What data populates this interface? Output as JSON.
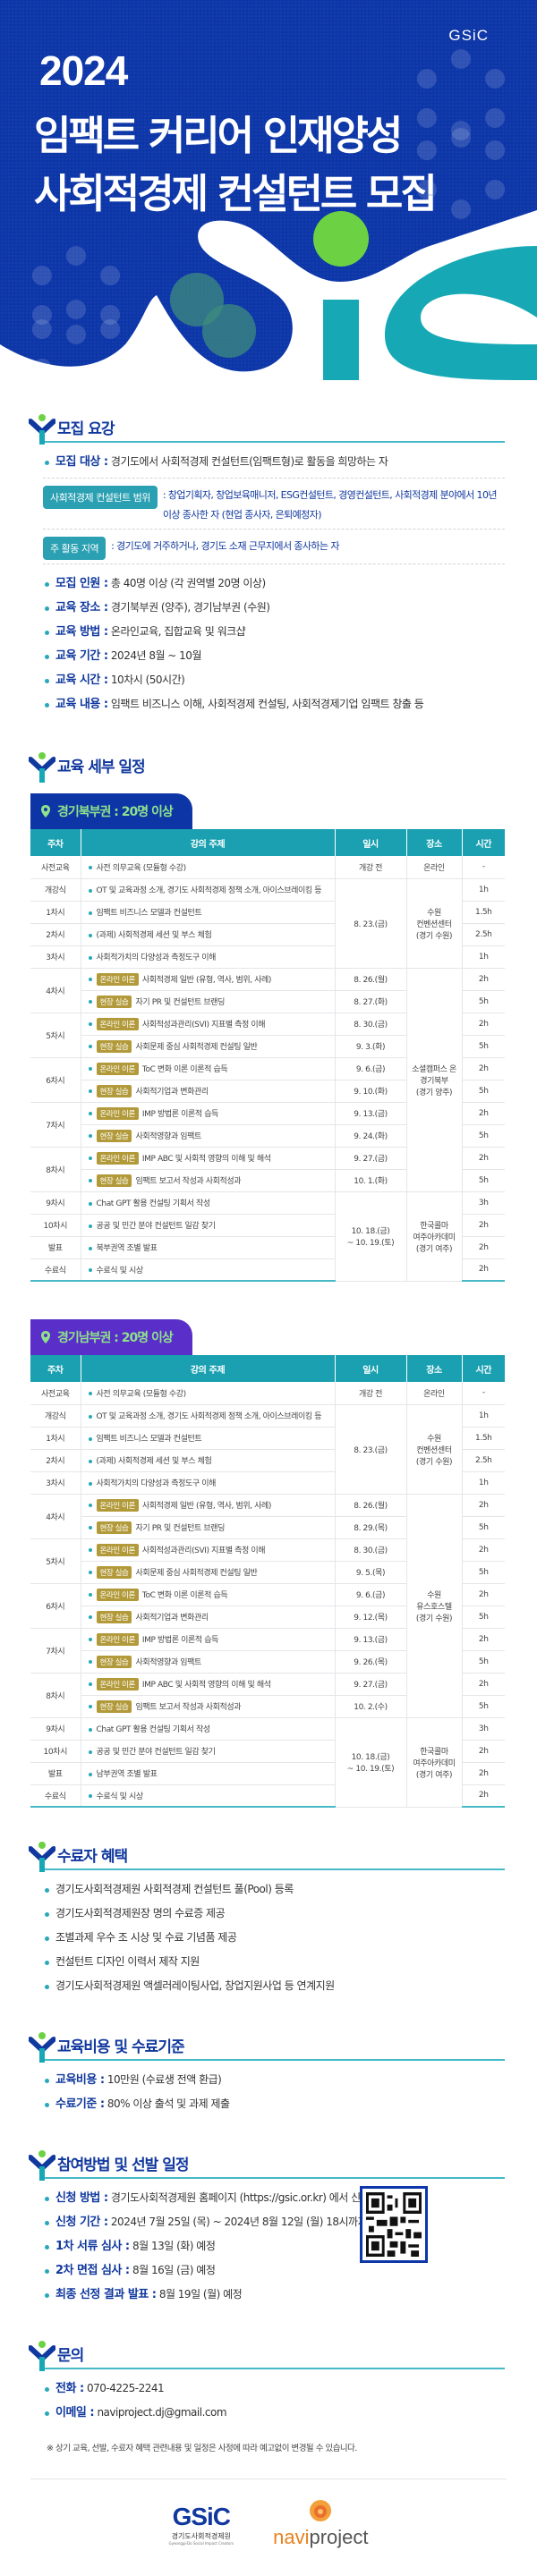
{
  "hero": {
    "logo": "GSiC",
    "year": "2024",
    "title_line1": "임팩트 커리어 인재양성",
    "title_line2": "사회적경제 컨설턴트 모집",
    "colors": {
      "bg": "#0d36a8",
      "green": "#6cd243",
      "teal": "#16a9b5"
    }
  },
  "recruit": {
    "title": "모집 요강",
    "target_label": "모집 대상 :",
    "target_value": "경기도에서 사회적경제 컨설턴트(임팩트형)로 활동을 희망하는 자",
    "scope_chip": "사회적경제 컨설턴트 범위",
    "scope_text": ": 창업기획자, 창업보육매니저, ESG컨설턴트, 경영컨설턴트, 사회적경제 분야에서 10년 이상 종사한 자 (현업 종사자, 은퇴예정자)",
    "region_chip": "주 활동 지역",
    "region_text": ": 경기도에 거주하거나, 경기도 소재 근무지에서 종사하는 자",
    "items": [
      {
        "label": "모집 인원 :",
        "value": "총 40명 이상 (각 권역별 20명 이상)"
      },
      {
        "label": "교육 장소 :",
        "value": "경기북부권 (양주), 경기남부권 (수원)"
      },
      {
        "label": "교육 방법 :",
        "value": "온라인교육, 집합교육 및 워크샵"
      },
      {
        "label": "교육 기간 :",
        "value": "2024년 8월 ~ 10월"
      },
      {
        "label": "교육 시간 :",
        "value": "10차시 (50시간)"
      },
      {
        "label": "교육 내용 :",
        "value": "임팩트 비즈니스 이해, 사회적경제 컨설팅, 사회적경제기업 임팩트 창출 등"
      }
    ]
  },
  "schedule": {
    "title": "교육 세부 일정",
    "headers": [
      "주차",
      "강의 주제",
      "일시",
      "장소",
      "시간"
    ],
    "badge_online": "온라인 이론",
    "badge_field": "현장 실습",
    "north": {
      "region_label": "경기북부권 : 20명 이상",
      "pre": {
        "week": "사전교육",
        "topic": "사전 의무교육 (모듈형 수강)",
        "date": "개강 전",
        "place": "온라인",
        "hours": "-"
      },
      "block1": {
        "date": "8. 23.(금)",
        "place": "수원\n컨벤션센터\n(경기 수원)",
        "rows": [
          {
            "week": "개강식",
            "topic": "OT 및 교육과정 소개, 경기도 사회적경제 정책 소개, 아이스브레이킹 등",
            "hours": "1h"
          },
          {
            "week": "1차시",
            "topic": "임팩트 비즈니스 모델과 컨설턴트",
            "hours": "1.5h"
          },
          {
            "week": "2차시",
            "topic": "(과제) 사회적경제 세션 및 부스 체험",
            "hours": "2.5h"
          },
          {
            "week": "3차시",
            "topic": "사회적가치의 다양성과 측정도구 이해",
            "hours": "1h"
          }
        ]
      },
      "block2": {
        "place": "소셜캠퍼스 온\n경기북부\n(경기 양주)",
        "weeks": [
          {
            "week": "4차시",
            "rows": [
              {
                "type": "online",
                "topic": "사회적경제 일반 (유형, 역사, 범위, 사례)",
                "date": "8. 26.(월)",
                "hours": "2h"
              },
              {
                "type": "field",
                "topic": "자기 PR 및 컨설턴트 브랜딩",
                "date": "8. 27.(화)",
                "hours": "5h"
              }
            ]
          },
          {
            "week": "5차시",
            "rows": [
              {
                "type": "online",
                "topic": "사회적성과관리(SVI) 지표별 측정 이해",
                "date": "8. 30.(금)",
                "hours": "2h"
              },
              {
                "type": "field",
                "topic": "사회문제 중심 사회적경제 컨설팅 일반",
                "date": "9. 3.(화)",
                "hours": "5h"
              }
            ]
          },
          {
            "week": "6차시",
            "rows": [
              {
                "type": "online",
                "topic": "ToC 변화 이론 이론적 습득",
                "date": "9. 6.(금)",
                "hours": "2h"
              },
              {
                "type": "field",
                "topic": "사회적기업과 변화관리",
                "date": "9. 10.(화)",
                "hours": "5h"
              }
            ]
          },
          {
            "week": "7차시",
            "rows": [
              {
                "type": "online",
                "topic": "IMP 방법론 이론적 습득",
                "date": "9. 13.(금)",
                "hours": "2h"
              },
              {
                "type": "field",
                "topic": "사회적영향과 임팩트",
                "date": "9. 24.(화)",
                "hours": "5h"
              }
            ]
          },
          {
            "week": "8차시",
            "rows": [
              {
                "type": "online",
                "topic": "IMP ABC 및 사회적 영향의 이해 및 해석",
                "date": "9. 27.(금)",
                "hours": "2h"
              },
              {
                "type": "field",
                "topic": "임팩트 보고서 작성과 사회적성과",
                "date": "10. 1.(화)",
                "hours": "5h"
              }
            ]
          }
        ]
      },
      "block3": {
        "date": "10. 18.(금)\n~ 10. 19.(토)",
        "place": "한국콜마\n여주아카데미\n(경기 여주)",
        "rows": [
          {
            "week": "9차시",
            "topic": "Chat GPT 활용 컨설팅 기획서 작성",
            "hours": "3h"
          },
          {
            "week": "10차시",
            "topic": "공공 및 민간 분야 컨설턴트 일감 찾기",
            "hours": "2h"
          },
          {
            "week": "발표",
            "topic": "북부권역 조별 발표",
            "hours": "2h"
          },
          {
            "week": "수료식",
            "topic": "수료식 및 시상",
            "hours": "2h"
          }
        ]
      }
    },
    "south": {
      "region_label": "경기남부권 : 20명 이상",
      "pre": {
        "week": "사전교육",
        "topic": "사전 의무교육 (모듈형 수강)",
        "date": "개강 전",
        "place": "온라인",
        "hours": "-"
      },
      "block1": {
        "date": "8. 23.(금)",
        "place": "수원\n컨벤션센터\n(경기 수원)",
        "rows": [
          {
            "week": "개강식",
            "topic": "OT 및 교육과정 소개, 경기도 사회적경제 정책 소개, 아이스브레이킹 등",
            "hours": "1h"
          },
          {
            "week": "1차시",
            "topic": "임팩트 비즈니스 모델과 컨설턴트",
            "hours": "1.5h"
          },
          {
            "week": "2차시",
            "topic": "(과제) 사회적경제 세션 및 부스 체험",
            "hours": "2.5h"
          },
          {
            "week": "3차시",
            "topic": "사회적가치의 다양성과 측정도구 이해",
            "hours": "1h"
          }
        ]
      },
      "block2": {
        "place": "수원\n유스호스텔\n(경기 수원)",
        "weeks": [
          {
            "week": "4차시",
            "rows": [
              {
                "type": "online",
                "topic": "사회적경제 일반 (유형, 역사, 범위, 사례)",
                "date": "8. 26.(월)",
                "hours": "2h"
              },
              {
                "type": "field",
                "topic": "자기 PR 및 컨설턴트 브랜딩",
                "date": "8. 29.(목)",
                "hours": "5h"
              }
            ]
          },
          {
            "week": "5차시",
            "rows": [
              {
                "type": "online",
                "topic": "사회적성과관리(SVI) 지표별 측정 이해",
                "date": "8. 30.(금)",
                "hours": "2h"
              },
              {
                "type": "field",
                "topic": "사회문제 중심 사회적경제 컨설팅 일반",
                "date": "9. 5.(목)",
                "hours": "5h"
              }
            ]
          },
          {
            "week": "6차시",
            "rows": [
              {
                "type": "online",
                "topic": "ToC 변화 이론 이론적 습득",
                "date": "9. 6.(금)",
                "hours": "2h"
              },
              {
                "type": "field",
                "topic": "사회적기업과 변화관리",
                "date": "9. 12.(목)",
                "hours": "5h"
              }
            ]
          },
          {
            "week": "7차시",
            "rows": [
              {
                "type": "online",
                "topic": "IMP 방법론 이론적 습득",
                "date": "9. 13.(금)",
                "hours": "2h"
              },
              {
                "type": "field",
                "topic": "사회적영향과 임팩트",
                "date": "9. 26.(목)",
                "hours": "5h"
              }
            ]
          },
          {
            "week": "8차시",
            "rows": [
              {
                "type": "online",
                "topic": "IMP ABC 및 사회적 영향의 이해 및 해석",
                "date": "9. 27.(금)",
                "hours": "2h"
              },
              {
                "type": "field",
                "topic": "임팩트 보고서 작성과 사회적성과",
                "date": "10. 2.(수)",
                "hours": "5h"
              }
            ]
          }
        ]
      },
      "block3": {
        "date": "10. 18.(금)\n~ 10. 19.(토)",
        "place": "한국콜마\n여주아카데미\n(경기 여주)",
        "rows": [
          {
            "week": "9차시",
            "topic": "Chat GPT 활용 컨설팅 기획서 작성",
            "hours": "3h"
          },
          {
            "week": "10차시",
            "topic": "공공 및 민간 분야 컨설턴트 일감 찾기",
            "hours": "2h"
          },
          {
            "week": "발표",
            "topic": "남부권역 조별 발표",
            "hours": "2h"
          },
          {
            "week": "수료식",
            "topic": "수료식 및 시상",
            "hours": "2h"
          }
        ]
      }
    }
  },
  "benefits": {
    "title": "수료자 혜택",
    "items": [
      "경기도사회적경제원 사회적경제 컨설턴트 풀(Pool) 등록",
      "경기도사회적경제원장 명의 수료증 제공",
      "조별과제 우수 조 시상 및 수료 기념품 제공",
      "컨설턴트 디자인 이력서 제작 지원",
      "경기도사회적경제원 액셀러레이팅사업, 창업지원사업 등 연계지원"
    ]
  },
  "cost": {
    "title": "교육비용 및 수료기준",
    "items": [
      {
        "label": "교육비용 :",
        "value": "10만원 (수료생 전액 환급)"
      },
      {
        "label": "수료기준 :",
        "value": "80% 이상 출석 및 과제 제출"
      }
    ]
  },
  "apply": {
    "title": "참여방법 및 선발 일정",
    "items": [
      {
        "label": "신청 방법 :",
        "value": "경기도사회적경제원 홈페이지 (https://gsic.or.kr) 에서 신청"
      },
      {
        "label": "신청 기간 :",
        "value": "2024년 7월 25일 (목) ~ 2024년 8월 12일 (월) 18시까지"
      },
      {
        "label": "1차 서류 심사 :",
        "value": "8월 13일 (화) 예정"
      },
      {
        "label": "2차 면접 심사 :",
        "value": "8월 16일 (금) 예정"
      },
      {
        "label": "최종 선정 결과 발표 :",
        "value": "8월 19일 (월) 예정"
      }
    ]
  },
  "contact": {
    "title": "문의",
    "items": [
      {
        "label": "전화 :",
        "value": "070-4225-2241"
      },
      {
        "label": "이메일 :",
        "value": "naviproject.dj@gmail.com"
      }
    ],
    "note": "※ 상기 교육, 선발, 수료자 혜택 관련내용 및 일정은 사정에 따라 예고없이 변경될 수 있습니다."
  },
  "footer": {
    "gsic_logo": "GSiC",
    "gsic_name": "경기도사회적경제원",
    "gsic_en": "Gyeonggi-Do Social Impact Creators",
    "navi_logo_a": "navi",
    "navi_logo_b": "project"
  }
}
